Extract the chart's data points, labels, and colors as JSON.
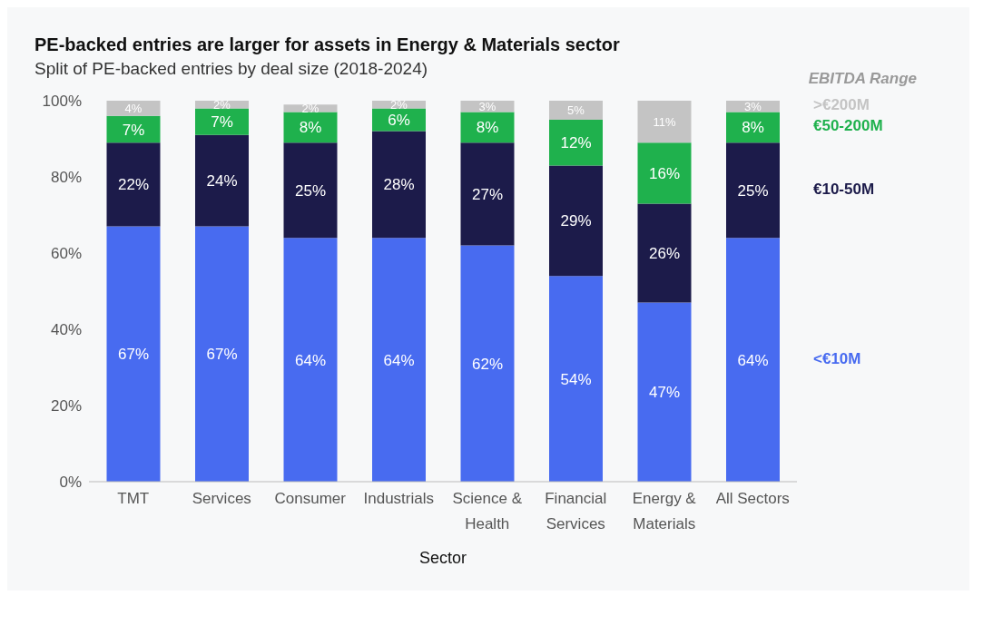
{
  "chart_data": {
    "type": "bar",
    "stacked": true,
    "title": "PE-backed entries are larger for assets in Energy & Materials sector",
    "subtitle": "Split of PE-backed entries by deal size (2018-2024)",
    "xlabel": "Sector",
    "legend_title": "EBITDA Range",
    "legend": "right",
    "categories": [
      "TMT",
      "Services",
      "Consumer",
      "Industrials",
      "Science & Health",
      "Financial Services",
      "Energy & Materials",
      "All Sectors"
    ],
    "ylim": [
      0,
      100
    ],
    "yticks": [
      {
        "value": 0,
        "label": "0%"
      },
      {
        "value": 20,
        "label": "20%"
      },
      {
        "value": 40,
        "label": "40%"
      },
      {
        "value": 60,
        "label": "60%"
      },
      {
        "value": 80,
        "label": "80%"
      },
      {
        "value": 100,
        "label": "100%"
      }
    ],
    "series": [
      {
        "name": "<€10M",
        "color": "#486bf0",
        "values": [
          67,
          67,
          64,
          64,
          62,
          54,
          47,
          64
        ],
        "value_labels": [
          "67%",
          "67%",
          "64%",
          "64%",
          "62%",
          "54%",
          "47%",
          "64%"
        ]
      },
      {
        "name": "€10-50M",
        "color": "#1c1b4a",
        "values": [
          22,
          24,
          25,
          28,
          27,
          29,
          26,
          25
        ],
        "value_labels": [
          "22%",
          "24%",
          "25%",
          "28%",
          "27%",
          "29%",
          "26%",
          "25%"
        ]
      },
      {
        "name": "€50-200M",
        "color": "#1fb14d",
        "values": [
          7,
          7,
          8,
          6,
          8,
          12,
          16,
          8
        ],
        "value_labels": [
          "7%",
          "7%",
          "8%",
          "6%",
          "8%",
          "12%",
          "16%",
          "8%"
        ]
      },
      {
        "name": ">€200M",
        "color": "#c4c4c4",
        "values": [
          4,
          2,
          2,
          2,
          3,
          5,
          11,
          3
        ],
        "value_labels": [
          "4%",
          "2%",
          "2%",
          "2%",
          "3%",
          "5%",
          "11%",
          "3%"
        ]
      }
    ]
  }
}
